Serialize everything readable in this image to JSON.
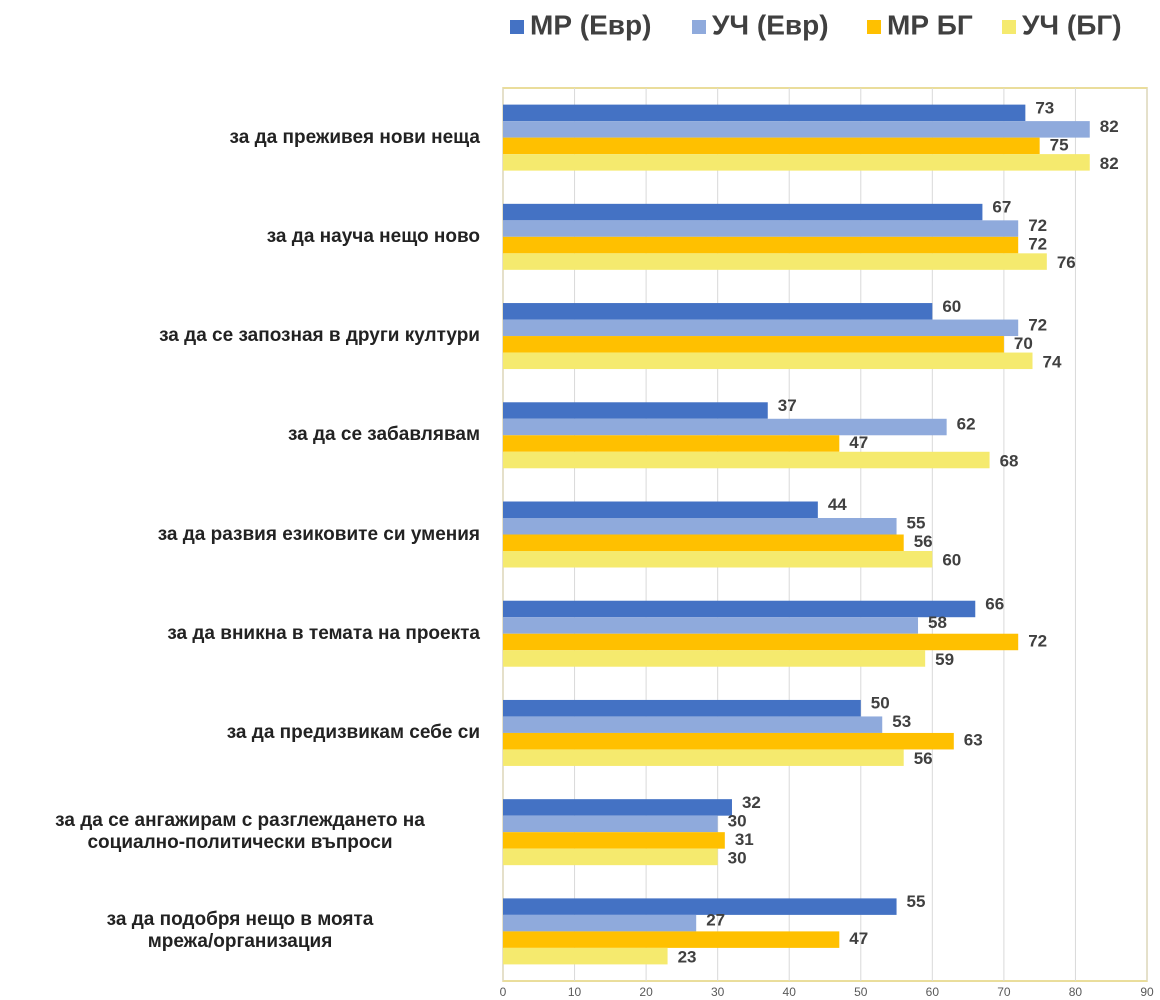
{
  "chart_data": {
    "type": "bar",
    "orientation": "horizontal",
    "categories": [
      "за да преживея нови неща",
      "за да науча нещо ново",
      "за да се запозная в други култури",
      "за да се забавлявам",
      "за да развия езиковите си умения",
      "за да вникна в темата на проекта",
      "за да предизвикам себе си",
      "за да се ангажирам с разглеждането на\nсоциално-политически въпроси",
      "за да подобря нещо в моята\nмрежа/организация"
    ],
    "series": [
      {
        "name": "МР (Евр)",
        "color": "#4472c4",
        "values": [
          73,
          67,
          60,
          37,
          44,
          66,
          50,
          32,
          55
        ]
      },
      {
        "name": "УЧ (Евр)",
        "color": "#8faadc",
        "values": [
          82,
          72,
          72,
          62,
          55,
          58,
          53,
          30,
          27
        ]
      },
      {
        "name": "МР БГ",
        "color": "#ffc000",
        "values": [
          75,
          72,
          70,
          47,
          56,
          72,
          63,
          31,
          47
        ]
      },
      {
        "name": "УЧ (БГ)",
        "color": "#f5ea6e",
        "values": [
          82,
          76,
          74,
          68,
          60,
          59,
          56,
          30,
          23
        ]
      }
    ],
    "xlim": [
      0,
      90
    ],
    "xticks": [
      0,
      10,
      20,
      30,
      40,
      50,
      60,
      70,
      80,
      90
    ],
    "grid": true,
    "legend": "top"
  }
}
